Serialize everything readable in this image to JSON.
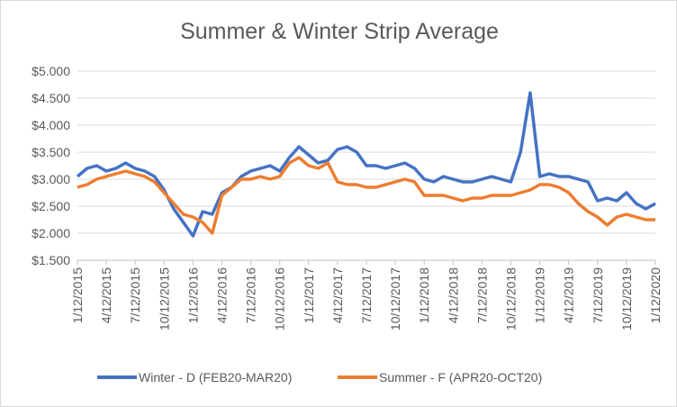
{
  "chart_data": {
    "type": "line",
    "title": "Summer & Winter Strip Average",
    "xlabel": "",
    "ylabel": "",
    "ylim": [
      1.5,
      5.0
    ],
    "y_ticks": [
      "$1.500",
      "$2.000",
      "$2.500",
      "$3.000",
      "$3.500",
      "$4.000",
      "$4.500",
      "$5.000"
    ],
    "y_tick_values": [
      1.5,
      2.0,
      2.5,
      3.0,
      3.5,
      4.0,
      4.5,
      5.0
    ],
    "x_ticks": [
      "1/12/2015",
      "4/12/2015",
      "7/12/2015",
      "10/12/2015",
      "1/12/2016",
      "4/12/2016",
      "7/12/2016",
      "10/12/2016",
      "1/12/2017",
      "4/12/2017",
      "7/12/2017",
      "10/12/2017",
      "1/12/2018",
      "4/12/2018",
      "7/12/2018",
      "10/12/2018",
      "1/12/2019",
      "4/12/2019",
      "7/12/2019",
      "10/12/2019",
      "1/12/2020"
    ],
    "grid": true,
    "legend_position": "bottom",
    "series": [
      {
        "name": "Winter - D (FEB20-MAR20)",
        "color": "#4472C4",
        "x": [
          "1/12/2015",
          "2/12/2015",
          "3/12/2015",
          "4/12/2015",
          "5/12/2015",
          "6/12/2015",
          "7/12/2015",
          "8/12/2015",
          "9/12/2015",
          "10/12/2015",
          "11/12/2015",
          "12/12/2015",
          "1/12/2016",
          "2/12/2016",
          "3/12/2016",
          "4/12/2016",
          "5/12/2016",
          "6/12/2016",
          "7/12/2016",
          "8/12/2016",
          "9/12/2016",
          "10/12/2016",
          "11/12/2016",
          "12/12/2016",
          "1/12/2017",
          "2/12/2017",
          "3/12/2017",
          "4/12/2017",
          "5/12/2017",
          "6/12/2017",
          "7/12/2017",
          "8/12/2017",
          "9/12/2017",
          "10/12/2017",
          "11/12/2017",
          "12/12/2017",
          "1/12/2018",
          "2/12/2018",
          "3/12/2018",
          "4/12/2018",
          "5/12/2018",
          "6/12/2018",
          "7/12/2018",
          "8/12/2018",
          "9/12/2018",
          "10/12/2018",
          "11/12/2018",
          "12/12/2018",
          "1/12/2019",
          "2/12/2019",
          "3/12/2019",
          "4/12/2019",
          "5/12/2019",
          "6/12/2019",
          "7/12/2019",
          "8/12/2019",
          "9/12/2019",
          "10/12/2019",
          "11/12/2019",
          "12/12/2019",
          "1/12/2020"
        ],
        "values": [
          3.05,
          3.2,
          3.25,
          3.15,
          3.2,
          3.3,
          3.2,
          3.15,
          3.05,
          2.8,
          2.45,
          2.2,
          1.95,
          2.4,
          2.35,
          2.75,
          2.85,
          3.05,
          3.15,
          3.2,
          3.25,
          3.15,
          3.4,
          3.6,
          3.45,
          3.3,
          3.35,
          3.55,
          3.6,
          3.5,
          3.25,
          3.25,
          3.2,
          3.25,
          3.3,
          3.2,
          3.0,
          2.95,
          3.05,
          3.0,
          2.95,
          2.95,
          3.0,
          3.05,
          3.0,
          2.95,
          3.5,
          4.6,
          3.05,
          3.1,
          3.05,
          3.05,
          3.0,
          2.95,
          2.6,
          2.65,
          2.6,
          2.75,
          2.55,
          2.45,
          2.55
        ]
      },
      {
        "name": "Summer - F (APR20-OCT20)",
        "color": "#ED7D31",
        "x": [
          "1/12/2015",
          "2/12/2015",
          "3/12/2015",
          "4/12/2015",
          "5/12/2015",
          "6/12/2015",
          "7/12/2015",
          "8/12/2015",
          "9/12/2015",
          "10/12/2015",
          "11/12/2015",
          "12/12/2015",
          "1/12/2016",
          "2/12/2016",
          "3/12/2016",
          "4/12/2016",
          "5/12/2016",
          "6/12/2016",
          "7/12/2016",
          "8/12/2016",
          "9/12/2016",
          "10/12/2016",
          "11/12/2016",
          "12/12/2016",
          "1/12/2017",
          "2/12/2017",
          "3/12/2017",
          "4/12/2017",
          "5/12/2017",
          "6/12/2017",
          "7/12/2017",
          "8/12/2017",
          "9/12/2017",
          "10/12/2017",
          "11/12/2017",
          "12/12/2017",
          "1/12/2018",
          "2/12/2018",
          "3/12/2018",
          "4/12/2018",
          "5/12/2018",
          "6/12/2018",
          "7/12/2018",
          "8/12/2018",
          "9/12/2018",
          "10/12/2018",
          "11/12/2018",
          "12/12/2018",
          "1/12/2019",
          "2/12/2019",
          "3/12/2019",
          "4/12/2019",
          "5/12/2019",
          "6/12/2019",
          "7/12/2019",
          "8/12/2019",
          "9/12/2019",
          "10/12/2019",
          "11/12/2019",
          "12/12/2019",
          "1/12/2020"
        ],
        "values": [
          2.85,
          2.9,
          3.0,
          3.05,
          3.1,
          3.15,
          3.1,
          3.05,
          2.95,
          2.75,
          2.55,
          2.35,
          2.3,
          2.2,
          2.0,
          2.7,
          2.85,
          3.0,
          3.0,
          3.05,
          3.0,
          3.05,
          3.3,
          3.4,
          3.25,
          3.2,
          3.3,
          2.95,
          2.9,
          2.9,
          2.85,
          2.85,
          2.9,
          2.95,
          3.0,
          2.95,
          2.7,
          2.7,
          2.7,
          2.65,
          2.6,
          2.65,
          2.65,
          2.7,
          2.7,
          2.7,
          2.75,
          2.8,
          2.9,
          2.9,
          2.85,
          2.75,
          2.55,
          2.4,
          2.3,
          2.15,
          2.3,
          2.35,
          2.3,
          2.25,
          2.25
        ]
      }
    ]
  }
}
